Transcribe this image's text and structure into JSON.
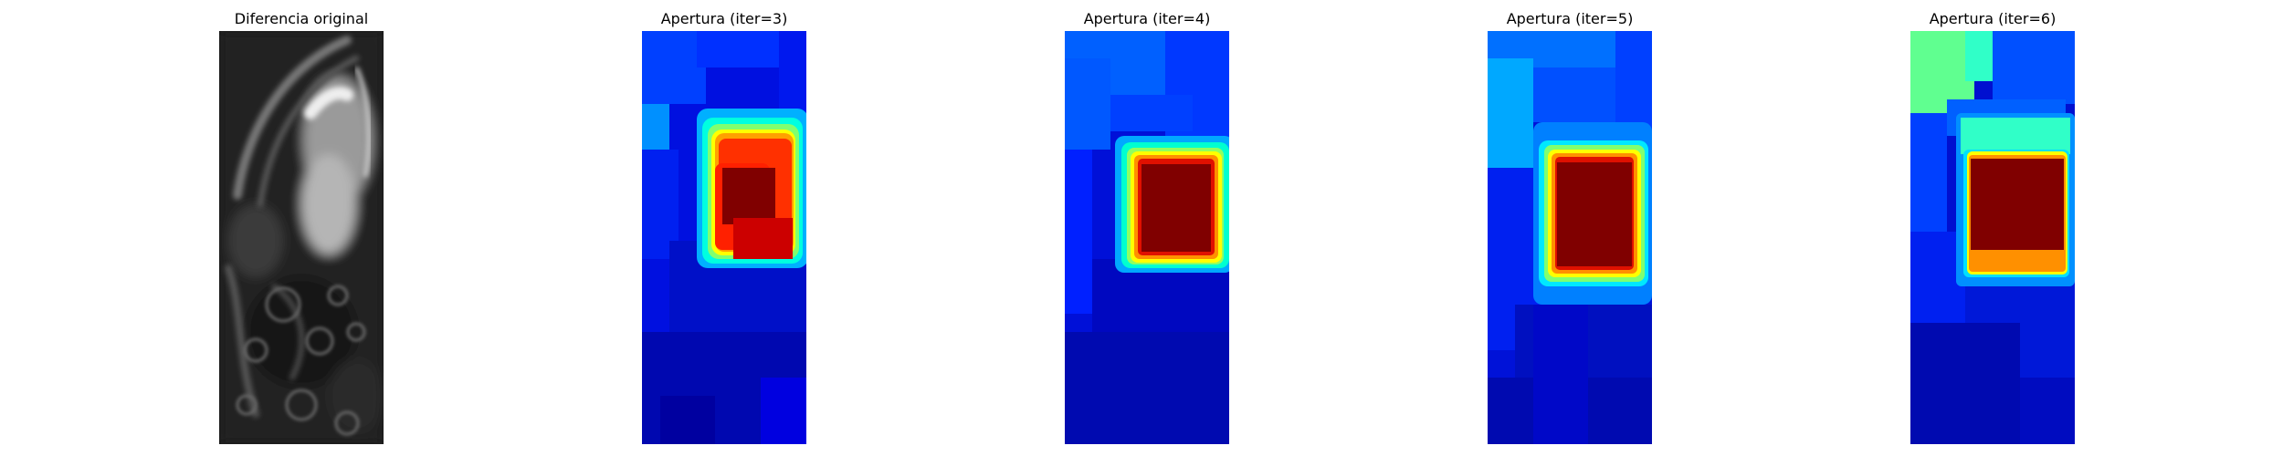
{
  "panels": [
    {
      "title": "Diferencia original",
      "colormap": "gray"
    },
    {
      "title": "Apertura (iter=3)",
      "colormap": "jet"
    },
    {
      "title": "Apertura (iter=4)",
      "colormap": "jet"
    },
    {
      "title": "Apertura (iter=5)",
      "colormap": "jet"
    },
    {
      "title": "Apertura (iter=6)",
      "colormap": "jet"
    }
  ],
  "colors": {
    "background": "#ffffff",
    "jet_dark_red": "#800000",
    "jet_red": "#cc0000",
    "jet_orange": "#ff8000",
    "jet_yellow": "#ffff00",
    "jet_cyan": "#00ffff",
    "jet_blue": "#0000ff",
    "jet_navy": "#000080"
  }
}
